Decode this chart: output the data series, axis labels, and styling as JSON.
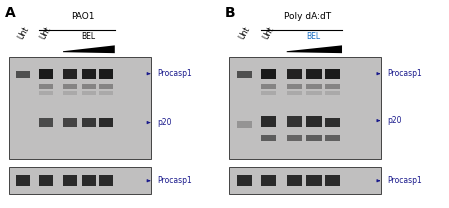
{
  "panel_A": {
    "label": "A",
    "title": "PAO1",
    "bel_color": "#000000",
    "col_labels": [
      "Unt",
      "Unt",
      "BEL"
    ]
  },
  "panel_B": {
    "label": "B",
    "title": "Poly dA:dT",
    "bel_color": "#1a6fc4",
    "col_labels": [
      "Unt",
      "Unt",
      "BEL"
    ]
  },
  "figure_bg": "#ffffff",
  "gel_bg": "#c0bfbf",
  "band_dark": "#1a1a1a",
  "band_med": "#555555",
  "band_light": "#909090",
  "arrow_color": "#1a1a8c",
  "label_color": "#1a1a8c",
  "bel_A_color": "#000000",
  "bel_B_color": "#1a6fc4"
}
